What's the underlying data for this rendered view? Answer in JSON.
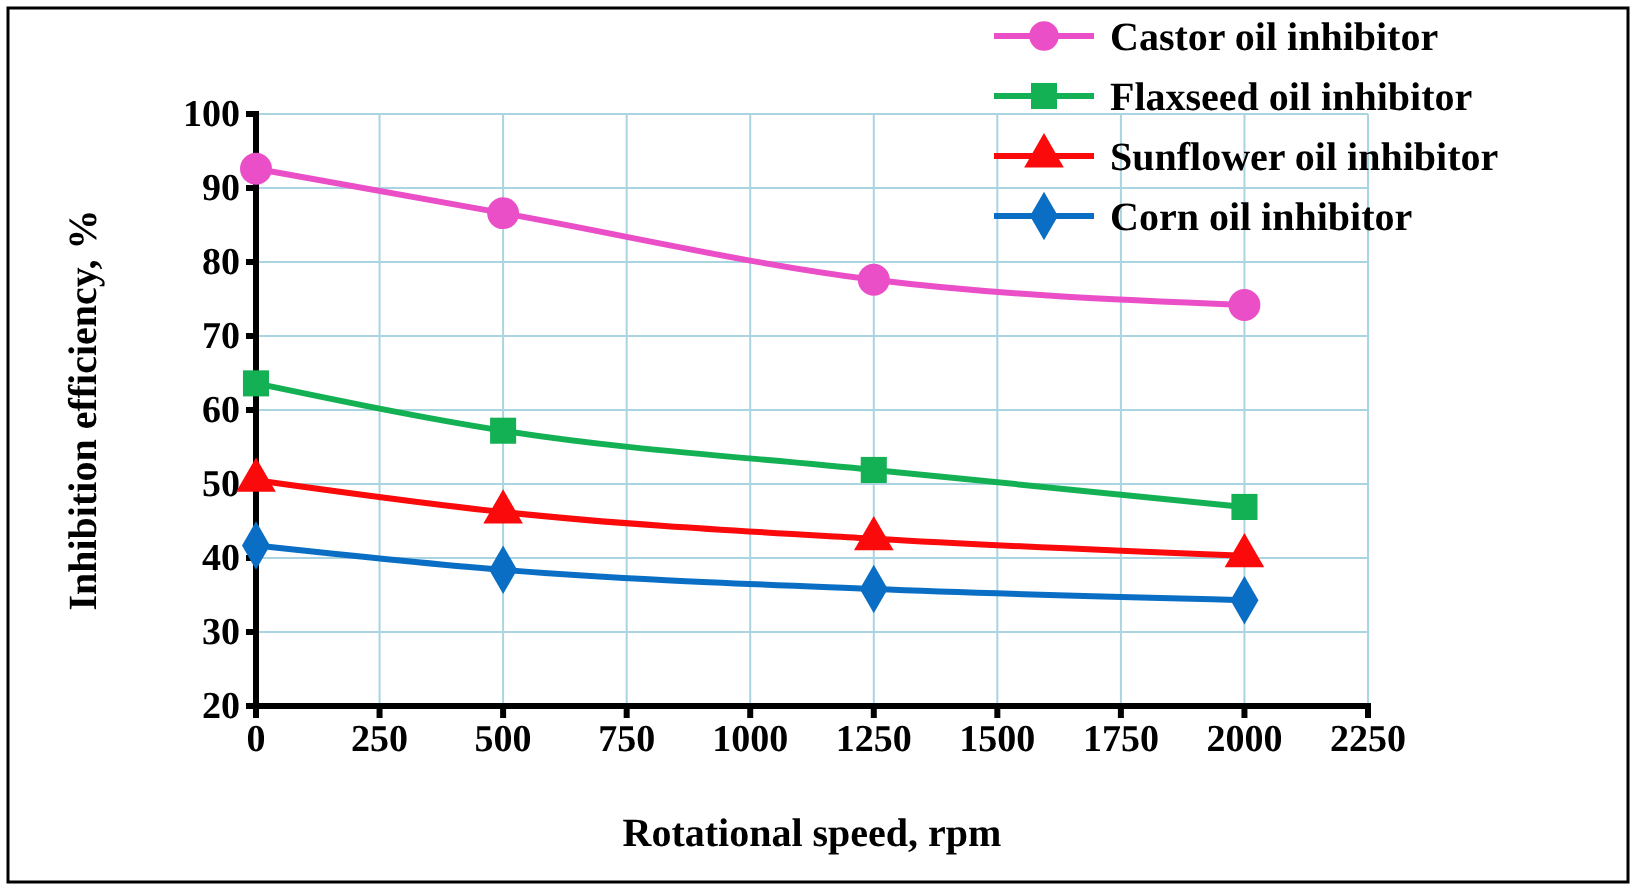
{
  "chart_data": {
    "type": "line",
    "xlabel": "Rotational speed, rpm",
    "ylabel": "Inhibition  efficiency, %",
    "x": [
      0,
      500,
      1250,
      2000
    ],
    "series": [
      {
        "name": "Castor oil inhibitor",
        "color": "#ea4fc8",
        "marker": "circle",
        "values": [
          92.6,
          86.6,
          77.6,
          74.2
        ]
      },
      {
        "name": "Flaxseed oil inhibitor",
        "color": "#14b154",
        "marker": "square",
        "values": [
          63.6,
          57.2,
          51.9,
          46.9
        ]
      },
      {
        "name": "Sunflower oil inhibitor",
        "color": "#fa0a0a",
        "marker": "triangle",
        "values": [
          50.5,
          46.2,
          42.6,
          40.3
        ]
      },
      {
        "name": "Corn oil inhibitor",
        "color": "#0a6fc4",
        "marker": "diamond",
        "values": [
          41.7,
          38.4,
          35.8,
          34.3
        ]
      }
    ],
    "xlim": [
      0,
      2250
    ],
    "xticks": [
      0,
      250,
      500,
      750,
      1000,
      1250,
      1500,
      1750,
      2000,
      2250
    ],
    "ylim": [
      20,
      100
    ],
    "yticks": [
      20,
      30,
      40,
      50,
      60,
      70,
      80,
      90,
      100
    ],
    "grid": true,
    "legend": "top right",
    "line_style": "solid"
  }
}
